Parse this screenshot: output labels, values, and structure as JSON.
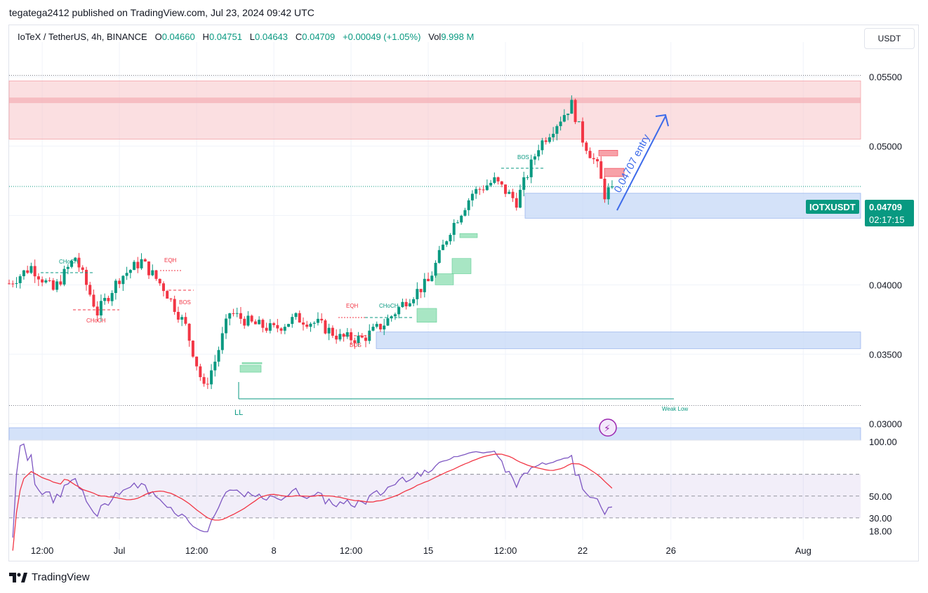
{
  "publisher": "tegatega2412 published on TradingView.com, Jul 23, 2024 09:42 UTC",
  "legend": {
    "symbol": "IoTeX / TetherUS, 4h, BINANCE",
    "open_label": "O",
    "open": "0.04660",
    "high_label": "H",
    "high": "0.04751",
    "low_label": "L",
    "low": "0.04643",
    "close_label": "C",
    "close": "0.04709",
    "change": "+0.00049 (+1.05%)",
    "vol_label": "Vol",
    "vol": "9.998 M"
  },
  "currency_button": "USDT",
  "price_badge": {
    "symbol": "IOTXUSDT",
    "price": "0.04709",
    "countdown": "02:17:15"
  },
  "footer": {
    "brand": "TradingView",
    "logo_icon": "tradingview-logo-icon"
  },
  "colors": {
    "up": "#089981",
    "down": "#f23645",
    "rsi": "#7e57c2",
    "rsi_ma": "#f23645",
    "supply_zone": "#f7c5c8",
    "demand_zone": "#c5d8f7",
    "fvg": "#a8e6c4"
  },
  "chart_data": {
    "type": "candlestick",
    "symbol": "IOTXUSDT",
    "timeframe": "4h",
    "price_axis": {
      "ticks": [
        "0.05500",
        "0.05000",
        "0.04500",
        "0.04000",
        "0.03500",
        "0.03000"
      ],
      "range": [
        0.0288,
        0.0575
      ]
    },
    "time_axis": {
      "ticks": [
        "12:00",
        "Jul",
        "12:00",
        "8",
        "12:00",
        "15",
        "12:00",
        "22",
        "26",
        "Aug"
      ]
    },
    "current_price": 0.04709,
    "close_path": [
      {
        "d": "Jun 26 00:00",
        "c": 0.0401
      },
      {
        "d": "Jun 27 00:00",
        "c": 0.0413
      },
      {
        "d": "Jun 28 00:00",
        "c": 0.0396
      },
      {
        "d": "Jun 29 00:00",
        "c": 0.042
      },
      {
        "d": "Jun 30 00:00",
        "c": 0.038
      },
      {
        "d": "Jul 01 00:00",
        "c": 0.0405
      },
      {
        "d": "Jul 02 00:00",
        "c": 0.0417
      },
      {
        "d": "Jul 03 00:00",
        "c": 0.0398
      },
      {
        "d": "Jul 04 00:00",
        "c": 0.037
      },
      {
        "d": "Jul 04 20:00",
        "c": 0.0325
      },
      {
        "d": "Jul 05 08:00",
        "c": 0.0345
      },
      {
        "d": "Jul 06 00:00",
        "c": 0.038
      },
      {
        "d": "Jul 07 00:00",
        "c": 0.0372
      },
      {
        "d": "Jul 08 00:00",
        "c": 0.0368
      },
      {
        "d": "Jul 09 00:00",
        "c": 0.0376
      },
      {
        "d": "Jul 10 00:00",
        "c": 0.0372
      },
      {
        "d": "Jul 11 00:00",
        "c": 0.0362
      },
      {
        "d": "Jul 12 00:00",
        "c": 0.0361
      },
      {
        "d": "Jul 13 00:00",
        "c": 0.0372
      },
      {
        "d": "Jul 14 00:00",
        "c": 0.0389
      },
      {
        "d": "Jul 15 00:00",
        "c": 0.0402
      },
      {
        "d": "Jul 16 00:00",
        "c": 0.044
      },
      {
        "d": "Jul 17 00:00",
        "c": 0.0466
      },
      {
        "d": "Jul 18 00:00",
        "c": 0.0475
      },
      {
        "d": "Jul 19 00:00",
        "c": 0.046
      },
      {
        "d": "Jul 20 00:00",
        "c": 0.05
      },
      {
        "d": "Jul 21 00:00",
        "c": 0.052
      },
      {
        "d": "Jul 21 12:00",
        "c": 0.053
      },
      {
        "d": "Jul 22 00:00",
        "c": 0.0505
      },
      {
        "d": "Jul 22 16:00",
        "c": 0.0485
      },
      {
        "d": "Jul 23 00:00",
        "c": 0.0465
      },
      {
        "d": "Jul 23 08:00",
        "c": 0.04709
      }
    ],
    "zones": [
      {
        "kind": "supply",
        "from": 0.0505,
        "to": 0.0547
      },
      {
        "kind": "demand",
        "from": 0.0448,
        "to": 0.0466
      },
      {
        "kind": "demand",
        "from": 0.0354,
        "to": 0.0366
      },
      {
        "kind": "demand",
        "from": 0.0288,
        "to": 0.0297
      }
    ],
    "levels": [
      {
        "label": "Weak Low",
        "price": 0.0313
      },
      {
        "label": "",
        "price": 0.0551
      },
      {
        "label": "",
        "price": 0.04709
      }
    ],
    "annotations": [
      {
        "text": "CHoCH",
        "color": "up"
      },
      {
        "text": "CHoCH",
        "color": "down"
      },
      {
        "text": "EQH",
        "color": "down"
      },
      {
        "text": "BOS",
        "color": "down"
      },
      {
        "text": "EQH",
        "color": "down"
      },
      {
        "text": "CHoCH",
        "color": "up"
      },
      {
        "text": "BOS",
        "color": "down"
      },
      {
        "text": "BOS",
        "color": "up"
      },
      {
        "text": "LL",
        "color": "up"
      },
      {
        "text": "Weak Low",
        "color": "up"
      },
      {
        "text": "0.04707 entry",
        "color": "rsi"
      }
    ],
    "rsi": {
      "ticks": [
        "100.00",
        "50.00",
        "30.00",
        "18.00"
      ],
      "upper_band": 70,
      "lower_band": 30,
      "last": 40
    }
  }
}
